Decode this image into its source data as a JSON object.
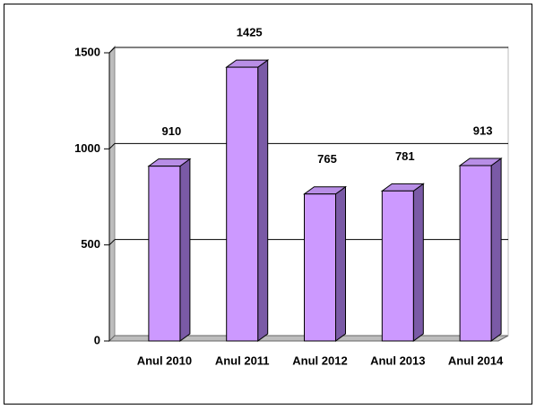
{
  "chart_data": {
    "type": "bar3d",
    "categories": [
      "Anul 2010",
      "Anul 2011",
      "Anul 2012",
      "Anul 2013",
      "Anul 2014"
    ],
    "values": [
      910,
      1425,
      765,
      781,
      913
    ],
    "color": "#cc99ff",
    "ylim": [
      0,
      1500
    ],
    "yticks": [
      0,
      500,
      1000,
      1500
    ],
    "grid": true
  }
}
